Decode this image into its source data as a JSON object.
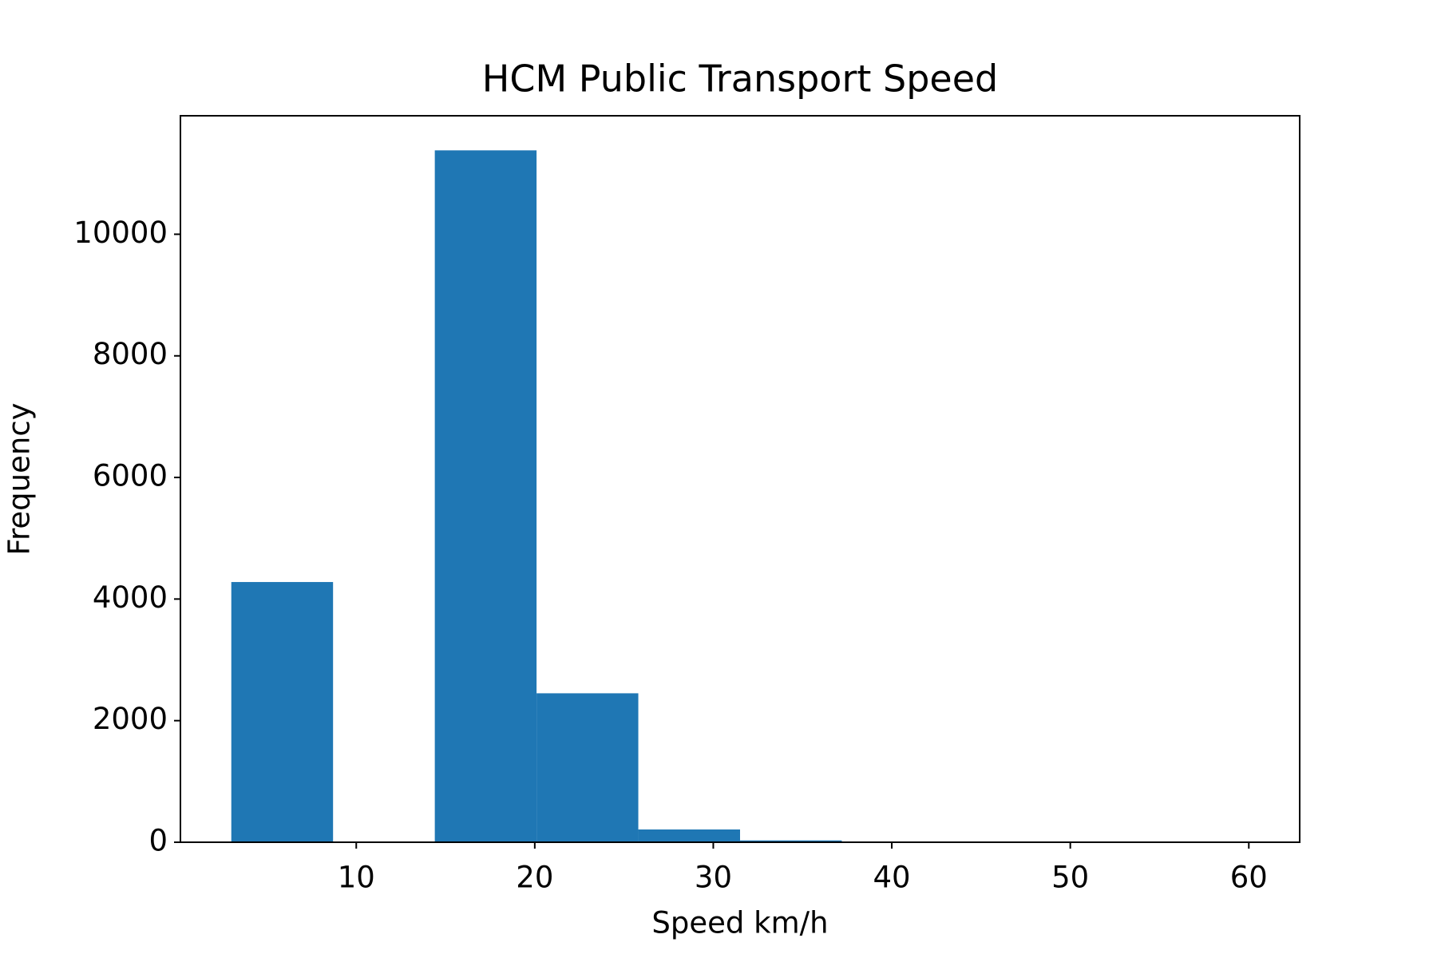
{
  "chart_data": {
    "type": "histogram",
    "title": "HCM Public Transport Speed",
    "x_label": "Speed km/h",
    "y_label": "Frequency",
    "bins": [
      3,
      8.7,
      14.4,
      20.1,
      25.8,
      31.5,
      37.2,
      42.9,
      48.6,
      54.3,
      60
    ],
    "counts": [
      4280,
      0,
      11380,
      2450,
      210,
      30,
      0,
      0,
      0,
      0
    ],
    "color": "#1f77b4",
    "xlim": [
      0.15,
      62.85
    ],
    "xticks": [
      10,
      20,
      30,
      40,
      50,
      60
    ],
    "ylim": [
      0,
      11949
    ],
    "yticks": [
      0,
      2000,
      4000,
      6000,
      8000,
      10000
    ],
    "grid": false
  }
}
